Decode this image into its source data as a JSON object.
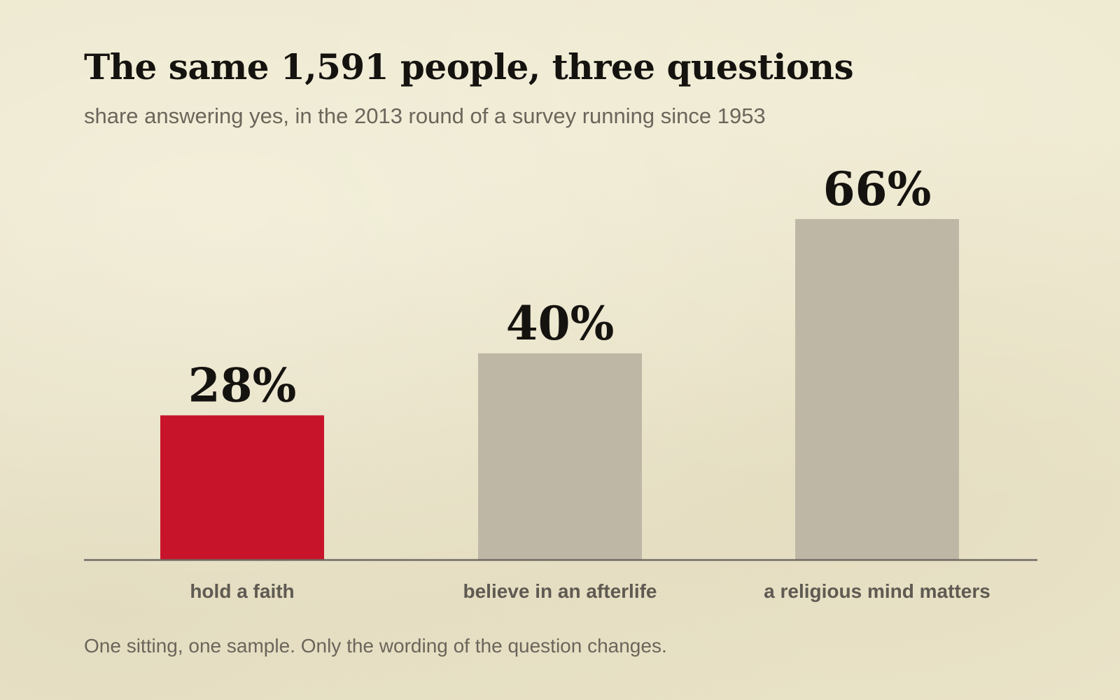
{
  "title": "The same 1,591 people, three questions",
  "subtitle": "share answering yes, in the 2013 round of a survey running since 1953",
  "footnote": "One sitting, one sample. Only the wording of the question changes.",
  "colors": {
    "highlight": "#c8142b",
    "bar": "#bfb7a6",
    "axis": "#6e6a62",
    "value_text": "#15130f",
    "label_text": "#5f5a52"
  },
  "chart_data": {
    "type": "bar",
    "categories": [
      "hold a faith",
      "believe in an afterlife",
      "a religious mind matters"
    ],
    "values": [
      28,
      40,
      66
    ],
    "value_labels": [
      "28%",
      "40%",
      "66%"
    ],
    "highlight_index": 0,
    "unit": "%",
    "ylim": [
      0,
      100
    ],
    "grid": false,
    "legend": "none"
  }
}
